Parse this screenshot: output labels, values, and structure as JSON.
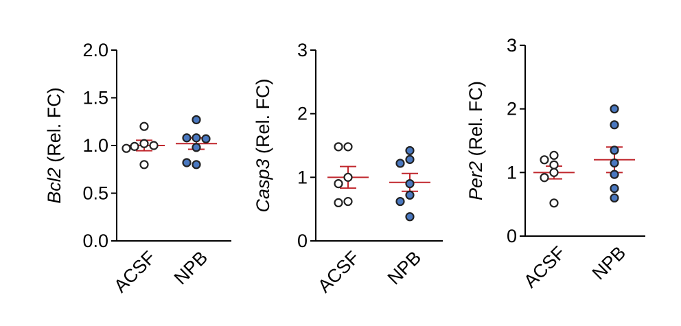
{
  "colors": {
    "acsf_fill": "#ffffff",
    "npb_fill": "#4a78c0",
    "mean_line": "#c0272d",
    "axis": "#000000"
  },
  "chart_data": [
    {
      "type": "scatter",
      "categories": [
        "ACSF",
        "NPB"
      ],
      "ylabel_gene": "Bcl2",
      "ylabel_rest": " (Rel. FC)",
      "ylim": [
        0,
        2
      ],
      "ticks": [
        "0.0",
        "0.5",
        "1.0",
        "1.5",
        "2.0"
      ],
      "series": [
        {
          "category": "ACSF",
          "values": [
            1.2,
            1.02,
            0.99,
            1.0,
            0.97,
            0.8
          ],
          "mean": 1.0,
          "sem": 0.055
        },
        {
          "category": "NPB",
          "values": [
            1.27,
            1.08,
            1.08,
            1.07,
            0.98,
            0.8,
            0.82
          ],
          "mean": 1.02,
          "sem": 0.06
        }
      ]
    },
    {
      "type": "scatter",
      "categories": [
        "ACSF",
        "NPB"
      ],
      "ylabel_gene": "Casp3",
      "ylabel_rest": " (Rel. FC)",
      "ylim": [
        0,
        3
      ],
      "ticks": [
        "0",
        "1",
        "2",
        "3"
      ],
      "series": [
        {
          "category": "ACSF",
          "values": [
            1.48,
            1.48,
            1.0,
            0.9,
            0.62,
            0.6
          ],
          "mean": 1.0,
          "sem": 0.17
        },
        {
          "category": "NPB",
          "values": [
            1.42,
            1.28,
            1.22,
            0.9,
            0.72,
            0.62,
            0.38
          ],
          "mean": 0.92,
          "sem": 0.14
        }
      ]
    },
    {
      "type": "scatter",
      "categories": [
        "ACSF",
        "NPB"
      ],
      "ylabel_gene": "Per2",
      "ylabel_rest": " (Rel. FC)",
      "ylim": [
        0,
        3
      ],
      "ticks": [
        "0",
        "1",
        "2",
        "3"
      ],
      "series": [
        {
          "category": "ACSF",
          "values": [
            1.27,
            1.2,
            1.12,
            1.0,
            0.92,
            0.52
          ],
          "mean": 1.0,
          "sem": 0.1
        },
        {
          "category": "NPB",
          "values": [
            2.0,
            1.75,
            1.35,
            1.15,
            0.97,
            0.75,
            0.6
          ],
          "mean": 1.2,
          "sem": 0.2
        }
      ]
    }
  ]
}
